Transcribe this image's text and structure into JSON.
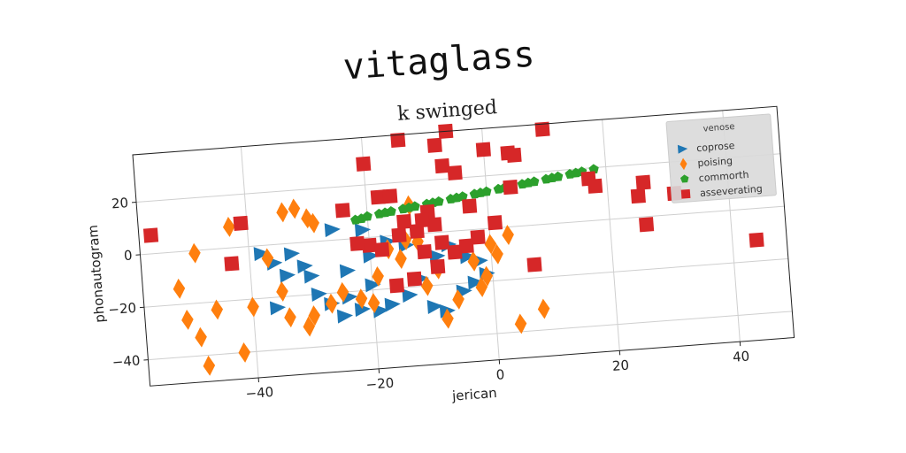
{
  "chart_data": {
    "type": "scatter",
    "title": "vitaglass",
    "subtitle": "k swinged",
    "xlabel": "jerican",
    "ylabel": "phonautogram",
    "xlim": [
      -58,
      49
    ],
    "ylim": [
      -50,
      38
    ],
    "xticks": [
      -40,
      -20,
      0,
      20,
      40
    ],
    "yticks": [
      -40,
      -20,
      0,
      20
    ],
    "grid": true,
    "legend": {
      "title": "venose",
      "placement": "top-right"
    },
    "series": [
      {
        "name": "coprose",
        "marker": "triangle-right",
        "color": "#1f77b4",
        "points": [
          [
            -38,
            -3
          ],
          [
            -36,
            -7
          ],
          [
            -34,
            -12
          ],
          [
            -33,
            -4
          ],
          [
            -31,
            -9
          ],
          [
            -30,
            -13
          ],
          [
            -29,
            -20
          ],
          [
            -27,
            -24
          ],
          [
            -25,
            -29
          ],
          [
            -24,
            -22
          ],
          [
            -22,
            -27
          ],
          [
            -20,
            -18
          ],
          [
            -19,
            -28
          ],
          [
            -17,
            -26
          ],
          [
            -14,
            -23
          ],
          [
            -12,
            -17
          ],
          [
            -10,
            -28
          ],
          [
            -8,
            -30
          ],
          [
            -5,
            -23
          ],
          [
            -3,
            -20
          ],
          [
            -1,
            -17
          ],
          [
            -20,
            -7
          ],
          [
            -17,
            -2
          ],
          [
            -14,
            -4
          ],
          [
            -9,
            -9
          ],
          [
            -7,
            -5
          ],
          [
            -4,
            -10
          ],
          [
            -2,
            -12
          ],
          [
            -26,
            4
          ],
          [
            -21,
            3
          ],
          [
            -36,
            -24
          ],
          [
            -24,
            -12
          ]
        ]
      },
      {
        "name": "poising",
        "marker": "diamond",
        "color": "#ff7f0e",
        "points": [
          [
            -52,
            -14
          ],
          [
            -51,
            -26
          ],
          [
            -49,
            -33
          ],
          [
            -48,
            -44
          ],
          [
            -46,
            -23
          ],
          [
            -49,
            -1
          ],
          [
            -43,
            8
          ],
          [
            -42,
            -40
          ],
          [
            -40,
            -23
          ],
          [
            -37,
            -5
          ],
          [
            -35,
            -18
          ],
          [
            -34,
            12
          ],
          [
            -32,
            13
          ],
          [
            -30,
            9
          ],
          [
            -29,
            7
          ],
          [
            -31,
            -32
          ],
          [
            -30,
            -28
          ],
          [
            -27,
            -24
          ],
          [
            -25,
            -20
          ],
          [
            -22,
            -23
          ],
          [
            -20,
            -25
          ],
          [
            -19,
            -15
          ],
          [
            -17,
            -5
          ],
          [
            -15,
            -9
          ],
          [
            -14,
            -2
          ],
          [
            -13,
            11
          ],
          [
            -11,
            -20
          ],
          [
            -9,
            -14
          ],
          [
            -8,
            -33
          ],
          [
            -6,
            -26
          ],
          [
            -3,
            -12
          ],
          [
            -2,
            -22
          ],
          [
            -1,
            -18
          ],
          [
            0,
            -6
          ],
          [
            1,
            -10
          ],
          [
            3,
            -3
          ],
          [
            4,
            -37
          ],
          [
            8,
            -32
          ],
          [
            -34,
            -28
          ],
          [
            -12,
            -3
          ]
        ]
      },
      {
        "name": "commorth",
        "marker": "pentagon",
        "color": "#2ca02c",
        "points": [
          [
            -22,
            7
          ],
          [
            -20,
            8
          ],
          [
            -18,
            8.6
          ],
          [
            -16,
            9.2
          ],
          [
            -14,
            9.8
          ],
          [
            -12,
            10.4
          ],
          [
            -10,
            11
          ],
          [
            -8,
            11.6
          ],
          [
            -6,
            12.2
          ],
          [
            -4,
            12.8
          ],
          [
            -2,
            13.4
          ],
          [
            0,
            14
          ],
          [
            2,
            14.6
          ],
          [
            4,
            15.2
          ],
          [
            6,
            15.8
          ],
          [
            8,
            16.4
          ],
          [
            10,
            17
          ],
          [
            12,
            17.6
          ],
          [
            14,
            18.2
          ],
          [
            16,
            18.8
          ],
          [
            18,
            19.4
          ],
          [
            -21,
            7.3
          ],
          [
            -17,
            8.9
          ],
          [
            -13,
            10.1
          ],
          [
            -9,
            11.3
          ],
          [
            -5,
            12.5
          ],
          [
            -1,
            13.7
          ],
          [
            3,
            14.9
          ],
          [
            7,
            16.1
          ],
          [
            11,
            17.3
          ],
          [
            15,
            18.5
          ]
        ]
      },
      {
        "name": "asseverating",
        "marker": "square",
        "color": "#d62728",
        "points": [
          [
            -56,
            7
          ],
          [
            -43,
            -6
          ],
          [
            -41,
            9
          ],
          [
            -24,
            11
          ],
          [
            -20,
            28
          ],
          [
            -18,
            15
          ],
          [
            -16,
            15
          ],
          [
            -14,
            36
          ],
          [
            -11,
            -7
          ],
          [
            -9,
            -13
          ],
          [
            -8,
            33
          ],
          [
            -7,
            25
          ],
          [
            -6,
            38
          ],
          [
            -5,
            22
          ],
          [
            -3,
            9
          ],
          [
            -2,
            -3
          ],
          [
            0,
            30
          ],
          [
            1,
            2
          ],
          [
            4,
            28
          ],
          [
            5,
            27
          ],
          [
            4,
            15
          ],
          [
            10,
            36
          ],
          [
            17,
            16
          ],
          [
            18,
            13
          ],
          [
            25,
            8
          ],
          [
            26,
            13
          ],
          [
            26,
            -3
          ],
          [
            31,
            8
          ],
          [
            44,
            -12
          ],
          [
            7,
            -15
          ],
          [
            -16,
            -19
          ],
          [
            -13,
            -17
          ],
          [
            -20,
            -3
          ],
          [
            -22,
            -2
          ],
          [
            -18,
            -5
          ],
          [
            -14,
            5
          ],
          [
            -12,
            1
          ],
          [
            -9,
            3
          ],
          [
            -6,
            -8
          ],
          [
            -10,
            8
          ],
          [
            -4,
            -6
          ],
          [
            -15,
            0
          ],
          [
            -11,
            5
          ],
          [
            -8,
            -4
          ]
        ]
      }
    ]
  }
}
